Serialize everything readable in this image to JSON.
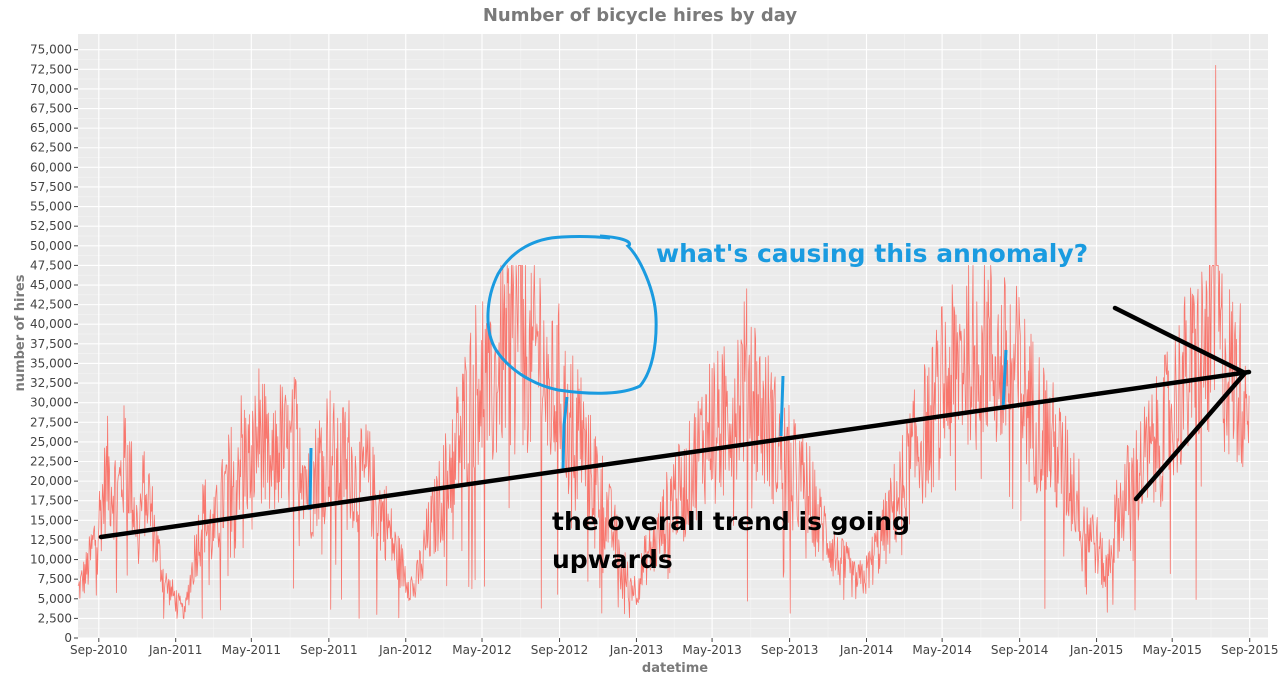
{
  "chart_data": {
    "type": "line",
    "title": "Number of bicycle hires by day",
    "xlabel": "datetime",
    "ylabel": "number of hires",
    "x_ticks": [
      "Sep-2010",
      "Jan-2011",
      "May-2011",
      "Sep-2011",
      "Jan-2012",
      "May-2012",
      "Sep-2012",
      "Jan-2013",
      "May-2013",
      "Sep-2013",
      "Jan-2014",
      "May-2014",
      "Sep-2014",
      "Jan-2015",
      "May-2015",
      "Sep-2015"
    ],
    "xlim": [
      "2010-07-30",
      "2015-09-30"
    ],
    "ylim": [
      0,
      77000
    ],
    "y_ticks": [
      0,
      2500,
      5000,
      7500,
      10000,
      12500,
      15000,
      17500,
      20000,
      22500,
      25000,
      27500,
      30000,
      32500,
      35000,
      37500,
      40000,
      42500,
      45000,
      47500,
      50000,
      52500,
      55000,
      57500,
      60000,
      62500,
      65000,
      67500,
      70000,
      72500,
      75000
    ],
    "grid": true,
    "series": [
      {
        "color": "#f8766d",
        "x": [
          "2010-07-30",
          "2010-08-15",
          "2010-09-01",
          "2010-09-15",
          "2010-10-01",
          "2010-10-15",
          "2010-11-01",
          "2010-11-15",
          "2010-12-01",
          "2010-12-15",
          "2011-01-01",
          "2011-01-15",
          "2011-02-01",
          "2011-02-15",
          "2011-03-01",
          "2011-03-15",
          "2011-04-01",
          "2011-04-15",
          "2011-05-01",
          "2011-05-15",
          "2011-06-01",
          "2011-06-15",
          "2011-07-01",
          "2011-07-15",
          "2011-08-01",
          "2011-08-15",
          "2011-09-01",
          "2011-09-15",
          "2011-10-01",
          "2011-10-15",
          "2011-11-01",
          "2011-11-15",
          "2011-12-01",
          "2011-12-15",
          "2012-01-01",
          "2012-01-15",
          "2012-02-01",
          "2012-02-15",
          "2012-03-01",
          "2012-03-15",
          "2012-04-01",
          "2012-04-15",
          "2012-05-01",
          "2012-05-15",
          "2012-06-01",
          "2012-06-15",
          "2012-07-01",
          "2012-07-15",
          "2012-08-01",
          "2012-08-15",
          "2012-09-01",
          "2012-09-15",
          "2012-10-01",
          "2012-10-15",
          "2012-11-01",
          "2012-11-15",
          "2012-12-01",
          "2012-12-15",
          "2013-01-01",
          "2013-01-15",
          "2013-02-01",
          "2013-02-15",
          "2013-03-01",
          "2013-03-15",
          "2013-04-01",
          "2013-04-15",
          "2013-05-01",
          "2013-05-15",
          "2013-06-01",
          "2013-06-15",
          "2013-07-01",
          "2013-07-15",
          "2013-08-01",
          "2013-08-15",
          "2013-09-01",
          "2013-09-15",
          "2013-10-01",
          "2013-10-15",
          "2013-11-01",
          "2013-11-15",
          "2013-12-01",
          "2013-12-15",
          "2014-01-01",
          "2014-01-15",
          "2014-02-01",
          "2014-02-15",
          "2014-03-01",
          "2014-03-15",
          "2014-04-01",
          "2014-04-15",
          "2014-05-01",
          "2014-05-15",
          "2014-06-01",
          "2014-06-15",
          "2014-07-01",
          "2014-07-15",
          "2014-08-01",
          "2014-08-15",
          "2014-09-01",
          "2014-09-15",
          "2014-10-01",
          "2014-10-15",
          "2014-11-01",
          "2014-11-15",
          "2014-12-01",
          "2014-12-15",
          "2015-01-01",
          "2015-01-15",
          "2015-02-01",
          "2015-02-15",
          "2015-03-01",
          "2015-03-15",
          "2015-04-01",
          "2015-04-15",
          "2015-05-01",
          "2015-05-15",
          "2015-06-01",
          "2015-06-15",
          "2015-07-01",
          "2015-07-09",
          "2015-07-15",
          "2015-08-01",
          "2015-08-15",
          "2015-08-31"
        ],
        "y": [
          6000,
          9000,
          15000,
          21000,
          18000,
          24000,
          14000,
          20000,
          12000,
          7000,
          5000,
          3000,
          11000,
          16000,
          13000,
          17000,
          21000,
          24000,
          22000,
          27000,
          20000,
          25000,
          23000,
          27000,
          18000,
          22000,
          25000,
          21000,
          24000,
          19000,
          21000,
          17000,
          15000,
          11000,
          8000,
          6000,
          12000,
          15000,
          19000,
          23000,
          27000,
          31000,
          35000,
          30000,
          36000,
          38000,
          42000,
          34000,
          38000,
          30000,
          32000,
          27000,
          28000,
          22000,
          20000,
          16000,
          12000,
          8000,
          6000,
          10000,
          12000,
          15000,
          19000,
          18000,
          22000,
          25000,
          28000,
          27000,
          30000,
          32000,
          34000,
          29000,
          27000,
          24000,
          22000,
          20000,
          19000,
          15000,
          13000,
          10000,
          9000,
          7000,
          8000,
          11000,
          14000,
          17000,
          20000,
          23000,
          26000,
          28000,
          32000,
          33000,
          36000,
          38000,
          40000,
          37000,
          34000,
          35000,
          33000,
          30000,
          28000,
          26000,
          23000,
          21000,
          18000,
          15000,
          12000,
          8000,
          15000,
          18000,
          20000,
          22000,
          24000,
          26000,
          29000,
          32000,
          34000,
          36000,
          38000,
          73000,
          37000,
          34000,
          32000,
          35000
        ]
      }
    ]
  },
  "annotations": {
    "question": "what's causing this annomaly?",
    "trend_line1": "the overall trend is going",
    "trend_line2": "upwards",
    "question_color": "#1a9be0",
    "trend_color": "#000000"
  }
}
